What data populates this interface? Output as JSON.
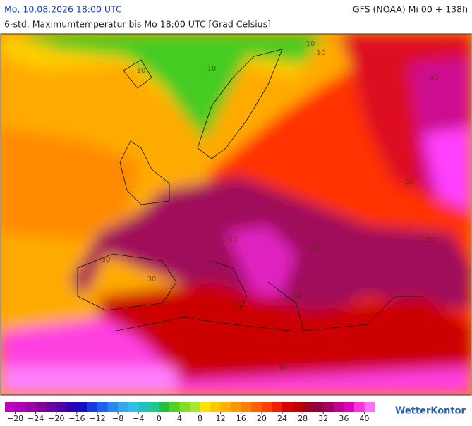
{
  "header": {
    "date": "Mo, 10.08.2026 18:00 UTC",
    "model": "GFS (NOAA) Mi 00 + 138h",
    "subtitle": "6-std. Maximumtemperatur bis Mo 18:00 UTC [Grad Celsius]"
  },
  "contour_labels": [
    "10",
    "10",
    "10",
    "10",
    "30",
    "30",
    "30",
    "30",
    "30",
    "30",
    "30",
    "30",
    "30",
    "30"
  ],
  "colorbar": {
    "lim": [
      -30,
      42
    ],
    "ticks": [
      {
        "value": -28,
        "label": "−28"
      },
      {
        "value": -24,
        "label": "−24"
      },
      {
        "value": -20,
        "label": "−20"
      },
      {
        "value": -16,
        "label": "−16"
      },
      {
        "value": -12,
        "label": "−12"
      },
      {
        "value": -8,
        "label": "−8"
      },
      {
        "value": -4,
        "label": "−4"
      },
      0,
      4,
      8,
      12,
      16,
      20,
      24,
      28,
      32,
      36,
      40
    ],
    "colors": [
      "#c000c0",
      "#b000b8",
      "#9a00a8",
      "#800098",
      "#6a00a0",
      "#5000a8",
      "#3000b0",
      "#1010c8",
      "#1838e0",
      "#2060f0",
      "#2888f0",
      "#30a8f0",
      "#30c0e8",
      "#20c0c0",
      "#20c890",
      "#20c040",
      "#50d020",
      "#80e020",
      "#a8e830",
      "#ffe000",
      "#ffc800",
      "#ffb000",
      "#ff9800",
      "#ff8000",
      "#ff6000",
      "#ff4000",
      "#f02000",
      "#d80000",
      "#c00000",
      "#a00020",
      "#900040",
      "#a00060",
      "#c00090",
      "#e000c0",
      "#ff30e0",
      "#ff70ff"
    ]
  },
  "brand": "WetterKontor"
}
